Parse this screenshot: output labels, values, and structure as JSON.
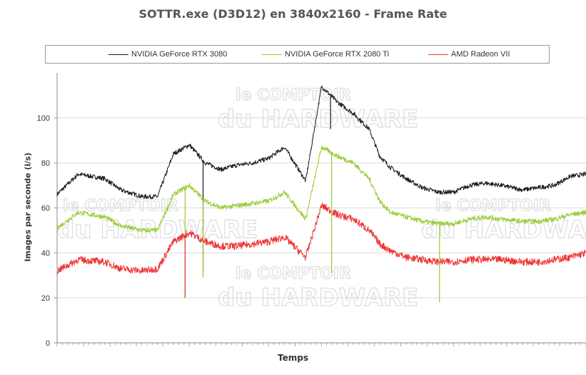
{
  "chart_data": {
    "type": "line",
    "title": "SOTTR.exe (D3D12) en 3840x2160 - Frame Rate",
    "xlabel": "Temps",
    "ylabel": "Images par seconde (i/s)",
    "ylim": [
      0,
      120
    ],
    "yticks": [
      0,
      20,
      40,
      60,
      80,
      100
    ],
    "grid": true,
    "legend_position": "top",
    "x": [
      0,
      4,
      9,
      12,
      16,
      19,
      22,
      25,
      28,
      31,
      34,
      37,
      40,
      43,
      47,
      50,
      53,
      56,
      59,
      61,
      63,
      66,
      69,
      72,
      75,
      78,
      81,
      84,
      88,
      91,
      94,
      97,
      100
    ],
    "series": [
      {
        "name": "NVIDIA GeForce RTX 3080",
        "color": "#1a1a1a",
        "values": [
          66,
          75,
          73,
          68,
          65,
          65,
          84,
          88,
          80,
          77,
          79,
          80,
          82,
          87,
          72,
          114,
          107,
          102,
          95,
          83,
          78,
          73,
          69,
          67,
          67,
          70,
          71,
          70,
          68,
          69,
          70,
          74,
          75
        ]
      },
      {
        "name": "NVIDIA GeForce RTX 2080 Ti",
        "color": "#99cc33",
        "values": [
          51,
          58,
          56,
          52,
          50,
          50,
          66,
          70,
          63,
          60,
          61,
          62,
          63,
          67,
          55,
          87,
          83,
          80,
          73,
          63,
          58,
          56,
          54,
          53,
          53,
          55,
          56,
          55,
          54,
          54,
          55,
          57,
          58
        ]
      },
      {
        "name": "AMD Radeon VII",
        "color": "#ee3333",
        "values": [
          32,
          37,
          36,
          33,
          32,
          33,
          45,
          49,
          45,
          43,
          43,
          44,
          45,
          47,
          38,
          61,
          57,
          55,
          50,
          44,
          41,
          38,
          37,
          36,
          36,
          37,
          37,
          37,
          36,
          36,
          37,
          38,
          40
        ]
      }
    ],
    "spikes": [
      {
        "series": 1,
        "x": 24.2,
        "to": 20
      },
      {
        "series": 2,
        "x": 24.2,
        "to": 20
      },
      {
        "series": 0,
        "x": 27.6,
        "to": 31
      },
      {
        "series": 1,
        "x": 27.6,
        "to": 29
      },
      {
        "series": 0,
        "x": 51.7,
        "to": 95
      },
      {
        "series": 1,
        "x": 51.9,
        "to": 31
      },
      {
        "series": 1,
        "x": 72.3,
        "to": 18
      }
    ]
  }
}
